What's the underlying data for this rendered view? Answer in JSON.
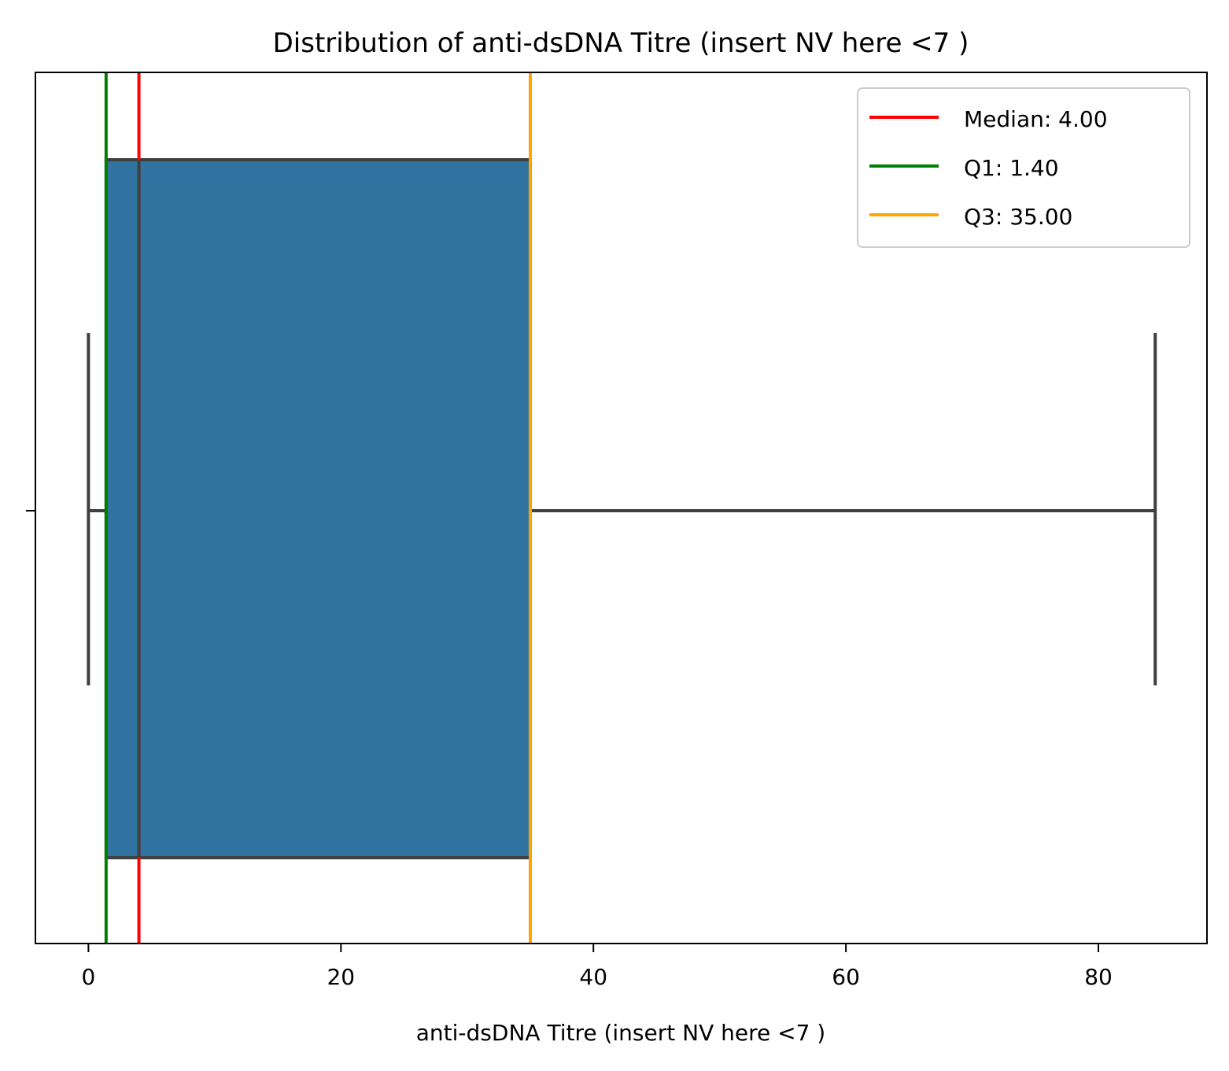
{
  "chart_data": {
    "type": "box",
    "title": "Distribution of anti-dsDNA Titre  (insert NV here <7 )",
    "xlabel": "anti-dsDNA Titre  (insert NV here <7 )",
    "ylabel": "",
    "xlim": [
      -4.2,
      88.6
    ],
    "xticks": [
      0,
      20,
      40,
      60,
      80
    ],
    "xtick_labels": [
      "0",
      "20",
      "40",
      "60",
      "80"
    ],
    "orientation": "horizontal",
    "grid": false,
    "box": {
      "whisker_low": 0,
      "q1": 1.4,
      "median": 4.0,
      "q3": 35.0,
      "whisker_high": 84.5,
      "fill_color": "#3274a1",
      "edge_color": "#3f3f3f"
    },
    "reference_lines": [
      {
        "name": "Median: 4.00",
        "value": 4.0,
        "color": "#ff0000"
      },
      {
        "name": "Q1: 1.40",
        "value": 1.4,
        "color": "#008000"
      },
      {
        "name": "Q3: 35.00",
        "value": 35.0,
        "color": "#ffa500"
      }
    ],
    "legend": {
      "position": "top-right",
      "entries": [
        "Median: 4.00",
        "Q1: 1.40",
        "Q3: 35.00"
      ]
    }
  }
}
